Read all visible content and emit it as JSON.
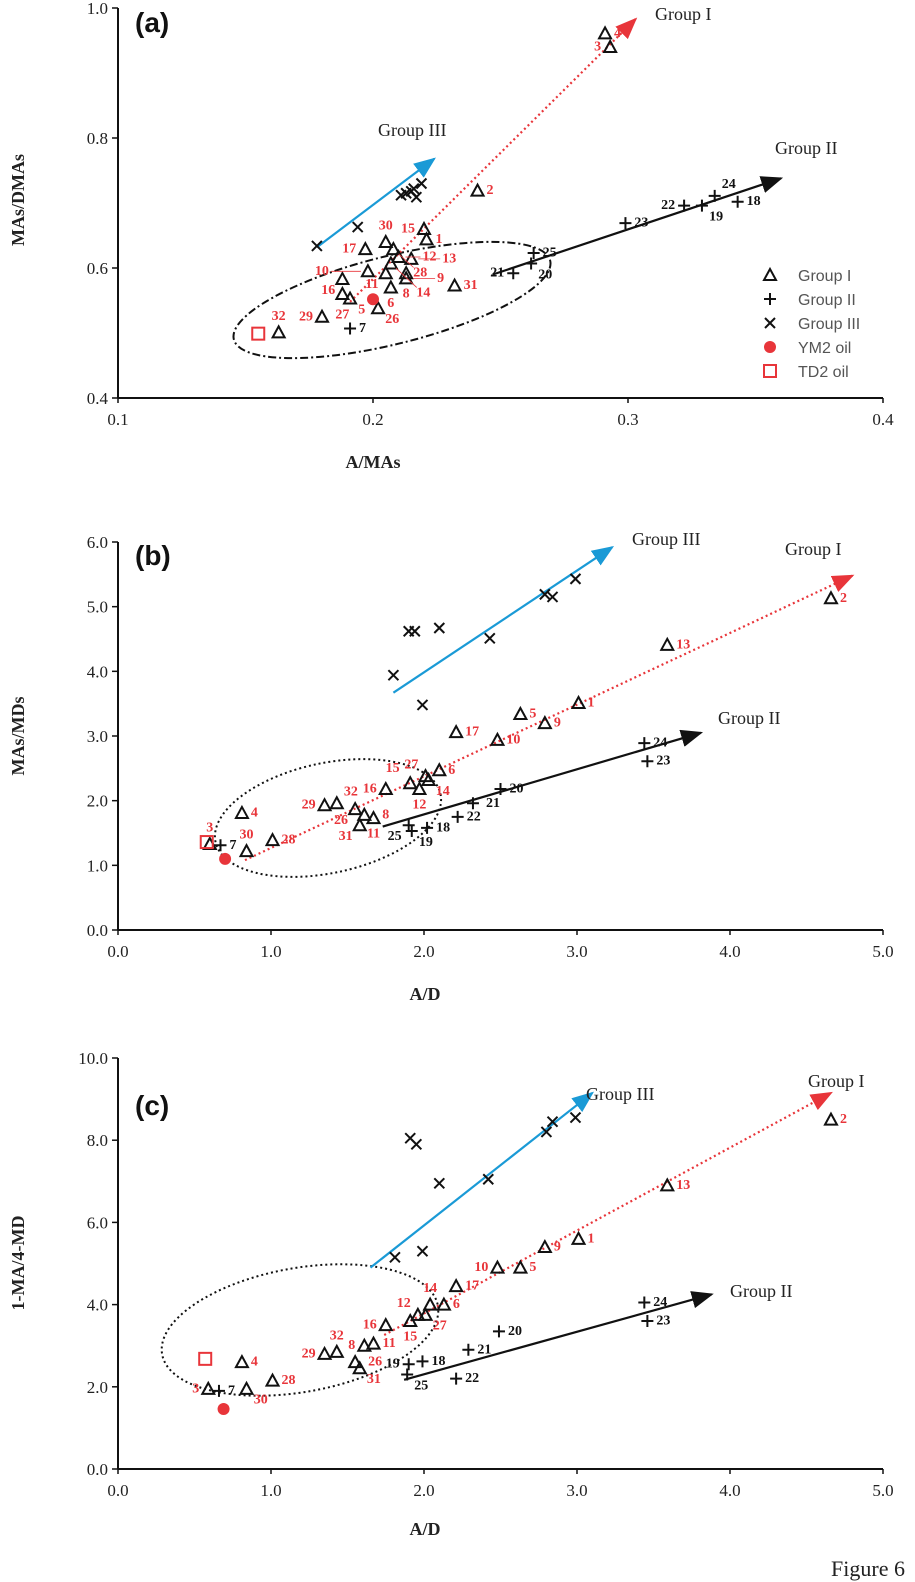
{
  "colors": {
    "group1_trend": "#e8353a",
    "group2_trend": "#111111",
    "group3_trend": "#1a9ad6",
    "oil": "#e8353a",
    "label_group1": "#e8353a",
    "label_group2": "#111111"
  },
  "caption": "Figure 6",
  "legend": [
    "Group I",
    "Group II",
    "Group III",
    "YM2 oil",
    "TD2 oil"
  ],
  "chart_data": [
    {
      "type": "scatter",
      "panel": "(a)",
      "xlabel": "A/MAs",
      "ylabel": "MAs/DMAs",
      "xlim": [
        0.1,
        0.4
      ],
      "ylim": [
        0.4,
        1.0
      ],
      "xticks": [
        "0.1",
        "0.2",
        "0.3",
        "0.4"
      ],
      "yticks": [
        "0.4",
        "0.6",
        "0.8",
        "1.0"
      ],
      "xtick_values": [
        0.1,
        0.2,
        0.3,
        0.4
      ],
      "ytick_values": [
        0.4,
        0.6,
        0.8,
        1.0
      ],
      "trend_labels": {
        "g1": "Group  I",
        "g2": "Group II",
        "g3": "Group III"
      },
      "trends": {
        "g1": [
          [
            0.191,
            0.548
          ],
          [
            0.303,
            0.983
          ]
        ],
        "g2": [
          [
            0.247,
            0.59
          ],
          [
            0.36,
            0.738
          ]
        ],
        "g3": [
          [
            0.178,
            0.632
          ],
          [
            0.224,
            0.768
          ]
        ]
      },
      "group1": [
        [
          0.291,
          0.961,
          "4"
        ],
        [
          0.293,
          0.94,
          "3"
        ],
        [
          0.241,
          0.719,
          "2"
        ],
        [
          0.22,
          0.66,
          "15"
        ],
        [
          0.221,
          0.644,
          "1"
        ],
        [
          0.205,
          0.64,
          "30"
        ],
        [
          0.208,
          0.629,
          "28"
        ],
        [
          0.197,
          0.629,
          "17"
        ],
        [
          0.21,
          0.617,
          "12"
        ],
        [
          0.207,
          0.607,
          "14"
        ],
        [
          0.215,
          0.614,
          "13"
        ],
        [
          0.198,
          0.595,
          "10"
        ],
        [
          0.205,
          0.592,
          "11"
        ],
        [
          0.213,
          0.592,
          "8"
        ],
        [
          0.213,
          0.584,
          "9"
        ],
        [
          0.188,
          0.583,
          "16"
        ],
        [
          0.207,
          0.57,
          "6"
        ],
        [
          0.232,
          0.573,
          "31"
        ],
        [
          0.188,
          0.56,
          "27"
        ],
        [
          0.191,
          0.553,
          "5"
        ],
        [
          0.202,
          0.538,
          "26"
        ],
        [
          0.18,
          0.525,
          "29"
        ],
        [
          0.163,
          0.501,
          "32"
        ]
      ],
      "group2": [
        [
          0.191,
          0.507,
          "7"
        ],
        [
          0.255,
          0.592,
          "21"
        ],
        [
          0.262,
          0.607,
          "20"
        ],
        [
          0.263,
          0.623,
          "25"
        ],
        [
          0.299,
          0.669,
          "23"
        ],
        [
          0.322,
          0.696,
          "22"
        ],
        [
          0.329,
          0.696,
          "19"
        ],
        [
          0.334,
          0.711,
          "24"
        ],
        [
          0.343,
          0.702,
          "18"
        ]
      ],
      "group3": [
        [
          0.178,
          0.634
        ],
        [
          0.194,
          0.663
        ],
        [
          0.211,
          0.712
        ],
        [
          0.213,
          0.715
        ],
        [
          0.215,
          0.718
        ],
        [
          0.216,
          0.722
        ],
        [
          0.217,
          0.709
        ],
        [
          0.219,
          0.73
        ]
      ],
      "ym2_oil": [
        0.2,
        0.552
      ],
      "td2_oil": [
        0.155,
        0.499
      ]
    },
    {
      "type": "scatter",
      "panel": "(b)",
      "xlabel": "A/D",
      "ylabel": "MAs/MDs",
      "xlim": [
        0,
        5
      ],
      "ylim": [
        0,
        6
      ],
      "xticks": [
        "0.0",
        "1.0",
        "2.0",
        "3.0",
        "4.0",
        "5.0"
      ],
      "yticks": [
        "0.0",
        "1.0",
        "2.0",
        "3.0",
        "4.0",
        "5.0",
        "6.0"
      ],
      "xtick_values": [
        0,
        1,
        2,
        3,
        4,
        5
      ],
      "ytick_values": [
        0,
        1,
        2,
        3,
        4,
        5,
        6
      ],
      "trend_labels": {
        "g1": "Group  I",
        "g2": "Group II",
        "g3": "Group III"
      },
      "trends": {
        "g1": [
          [
            0.83,
            1.08
          ],
          [
            4.8,
            5.48
          ]
        ],
        "g2": [
          [
            1.73,
            1.6
          ],
          [
            3.81,
            3.05
          ]
        ],
        "g3": [
          [
            1.8,
            3.67
          ],
          [
            3.23,
            5.92
          ]
        ]
      },
      "group1": [
        [
          4.66,
          5.13,
          "2"
        ],
        [
          3.59,
          4.41,
          "13"
        ],
        [
          3.01,
          3.51,
          "1"
        ],
        [
          2.63,
          3.34,
          "5"
        ],
        [
          2.79,
          3.2,
          "9"
        ],
        [
          2.48,
          2.94,
          "10"
        ],
        [
          2.21,
          3.06,
          "17"
        ],
        [
          2.1,
          2.47,
          "6"
        ],
        [
          2.01,
          2.38,
          "27"
        ],
        [
          2.03,
          2.32,
          "14"
        ],
        [
          1.91,
          2.27,
          "15"
        ],
        [
          1.97,
          2.18,
          "12"
        ],
        [
          1.75,
          2.18,
          "16"
        ],
        [
          1.55,
          1.87,
          "26"
        ],
        [
          1.61,
          1.78,
          "8"
        ],
        [
          1.67,
          1.73,
          "11"
        ],
        [
          1.58,
          1.62,
          "31"
        ],
        [
          1.35,
          1.93,
          "29"
        ],
        [
          1.43,
          1.96,
          "32"
        ],
        [
          0.81,
          1.81,
          "4"
        ],
        [
          1.01,
          1.39,
          "28"
        ],
        [
          0.84,
          1.22,
          "30"
        ],
        [
          0.6,
          1.33,
          "3"
        ]
      ],
      "group2": [
        [
          0.67,
          1.31,
          "7"
        ],
        [
          1.9,
          1.62,
          "25"
        ],
        [
          1.92,
          1.53,
          "19"
        ],
        [
          2.02,
          1.58,
          "18"
        ],
        [
          2.22,
          1.75,
          "22"
        ],
        [
          2.32,
          1.96,
          "21"
        ],
        [
          2.5,
          2.18,
          "20"
        ],
        [
          3.44,
          2.89,
          "24"
        ],
        [
          3.46,
          2.61,
          "23"
        ]
      ],
      "group3": [
        [
          1.8,
          3.94
        ],
        [
          1.9,
          4.62
        ],
        [
          1.94,
          4.62
        ],
        [
          2.1,
          4.67
        ],
        [
          1.99,
          3.48
        ],
        [
          2.43,
          4.51
        ],
        [
          2.79,
          5.19
        ],
        [
          2.84,
          5.15
        ],
        [
          2.99,
          5.43
        ]
      ],
      "ym2_oil": [
        0.7,
        1.1
      ],
      "td2_oil": [
        0.58,
        1.36
      ]
    },
    {
      "type": "scatter",
      "panel": "(c)",
      "xlabel": "A/D",
      "ylabel": "1-MA/4-MD",
      "xlim": [
        0,
        5
      ],
      "ylim": [
        0,
        10
      ],
      "xticks": [
        "0.0",
        "1.0",
        "2.0",
        "3.0",
        "4.0",
        "5.0"
      ],
      "yticks": [
        "0.0",
        "2.0",
        "4.0",
        "6.0",
        "8.0",
        "10.0"
      ],
      "xtick_values": [
        0,
        1,
        2,
        3,
        4,
        5
      ],
      "ytick_values": [
        0,
        2,
        4,
        6,
        8,
        10
      ],
      "trend_labels": {
        "g1": "Group  I",
        "g2": "Group II",
        "g3": "Group III"
      },
      "trends": {
        "g1": [
          [
            1.74,
            3.26
          ],
          [
            4.66,
            9.15
          ]
        ],
        "g2": [
          [
            1.87,
            2.17
          ],
          [
            3.88,
            4.25
          ]
        ],
        "g3": [
          [
            1.65,
            4.9
          ],
          [
            3.1,
            9.15
          ]
        ]
      },
      "group1": [
        [
          4.66,
          8.5,
          "2"
        ],
        [
          3.59,
          6.9,
          "13"
        ],
        [
          3.01,
          5.6,
          "1"
        ],
        [
          2.79,
          5.4,
          "9"
        ],
        [
          2.48,
          4.9,
          "10"
        ],
        [
          2.63,
          4.9,
          "5"
        ],
        [
          2.21,
          4.45,
          "17"
        ],
        [
          2.04,
          4.0,
          "14"
        ],
        [
          2.13,
          4.0,
          "6"
        ],
        [
          1.96,
          3.75,
          "12"
        ],
        [
          2.01,
          3.75,
          "27"
        ],
        [
          1.91,
          3.6,
          "15"
        ],
        [
          1.75,
          3.5,
          "16"
        ],
        [
          1.61,
          3.0,
          "8"
        ],
        [
          1.67,
          3.05,
          "11"
        ],
        [
          1.35,
          2.8,
          "29"
        ],
        [
          1.43,
          2.85,
          "32"
        ],
        [
          1.55,
          2.6,
          "26"
        ],
        [
          1.58,
          2.45,
          "31"
        ],
        [
          0.81,
          2.6,
          "4"
        ],
        [
          1.01,
          2.15,
          "28"
        ],
        [
          0.84,
          1.95,
          "30"
        ],
        [
          0.59,
          1.95,
          "3"
        ]
      ],
      "group2": [
        [
          0.66,
          1.9,
          "7"
        ],
        [
          1.9,
          2.55,
          "19"
        ],
        [
          1.99,
          2.62,
          "18"
        ],
        [
          1.89,
          2.3,
          "25"
        ],
        [
          2.21,
          2.2,
          "22"
        ],
        [
          2.29,
          2.9,
          "21"
        ],
        [
          2.49,
          3.35,
          "20"
        ],
        [
          3.44,
          4.05,
          "24"
        ],
        [
          3.46,
          3.6,
          "23"
        ]
      ],
      "group3": [
        [
          1.91,
          8.05
        ],
        [
          1.95,
          7.9
        ],
        [
          2.1,
          6.95
        ],
        [
          2.42,
          7.05
        ],
        [
          2.8,
          8.2
        ],
        [
          2.84,
          8.45
        ],
        [
          2.99,
          8.55
        ],
        [
          1.81,
          5.15
        ],
        [
          1.99,
          5.3
        ]
      ],
      "ym2_oil": [
        0.69,
        1.46
      ],
      "td2_oil": [
        0.57,
        2.68
      ]
    }
  ]
}
